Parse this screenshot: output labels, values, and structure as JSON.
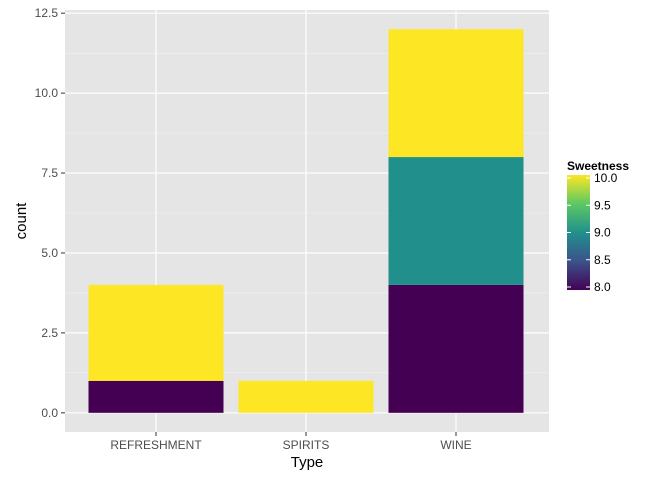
{
  "chart_data": {
    "type": "bar",
    "stacked": true,
    "categories": [
      "REFRESHMENT",
      "SPIRITS",
      "WINE"
    ],
    "stacks": [
      {
        "category": "REFRESHMENT",
        "segments": [
          {
            "sweetness": 8.0,
            "count": 1
          },
          {
            "sweetness": 10.0,
            "count": 3
          }
        ]
      },
      {
        "category": "SPIRITS",
        "segments": [
          {
            "sweetness": 10.0,
            "count": 1
          }
        ]
      },
      {
        "category": "WINE",
        "segments": [
          {
            "sweetness": 8.0,
            "count": 4
          },
          {
            "sweetness": 9.0,
            "count": 4
          },
          {
            "sweetness": 10.0,
            "count": 4
          }
        ]
      }
    ],
    "xlabel": "Type",
    "ylabel": "count",
    "ylim": [
      -0.6,
      12.6
    ],
    "yticks": [
      0.0,
      2.5,
      5.0,
      7.5,
      10.0,
      12.5
    ],
    "ytick_labels": [
      "0.0",
      "2.5",
      "5.0",
      "7.5",
      "10.0",
      "12.5"
    ],
    "grid": true,
    "background": "#e5e5e5",
    "gridline_color": "#ffffff",
    "legend": {
      "title": "Sweetness",
      "placement": "right",
      "range": [
        8.0,
        10.0
      ],
      "ticks": [
        8.0,
        8.5,
        9.0,
        9.5,
        10.0
      ],
      "tick_labels": [
        "8.0",
        "8.5",
        "9.0",
        "9.5",
        "10.0"
      ],
      "colormap": "viridis",
      "colors": [
        "#440154",
        "#3b528b",
        "#21908c",
        "#5dc863",
        "#fde725"
      ]
    }
  }
}
